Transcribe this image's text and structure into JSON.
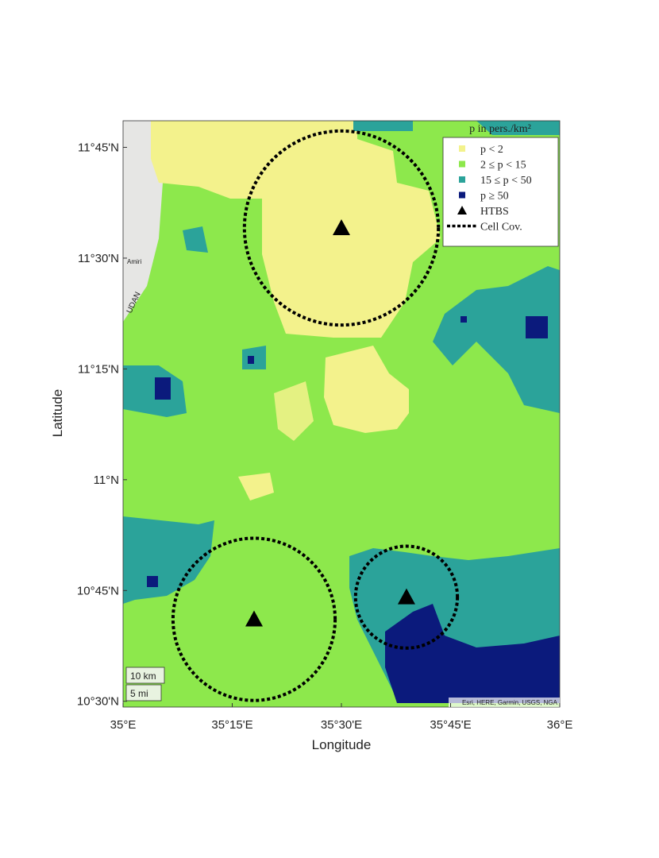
{
  "map": {
    "xlabel": "Longitude",
    "ylabel": "Latitude",
    "xlim": [
      35,
      36
    ],
    "ylim": [
      10.487,
      11.81
    ],
    "xticks": [
      {
        "value": 35,
        "label": "35°E"
      },
      {
        "value": 35.25,
        "label": "35°15'E"
      },
      {
        "value": 35.5,
        "label": "35°30'E"
      },
      {
        "value": 35.75,
        "label": "35°45'E"
      },
      {
        "value": 36,
        "label": "36°E"
      }
    ],
    "yticks": [
      {
        "value": 10.5,
        "label": "10°30'N"
      },
      {
        "value": 10.75,
        "label": "10°45'N"
      },
      {
        "value": 11,
        "label": "11°N"
      },
      {
        "value": 11.25,
        "label": "11°15'N"
      },
      {
        "value": 11.5,
        "label": "11°30'N"
      },
      {
        "value": 11.75,
        "label": "11°45'N"
      }
    ],
    "legend": {
      "title": "p in pers./km²",
      "entries": [
        {
          "label": "p < 2",
          "color": "#f3f28c"
        },
        {
          "label": "2 ≤ p < 15",
          "color": "#8de84c"
        },
        {
          "label": "15 ≤ p < 50",
          "color": "#2ba39a"
        },
        {
          "label": "p ≥ 50",
          "color": "#0b1a7c"
        },
        {
          "label": "HTBS",
          "color": "#000000"
        },
        {
          "label": "Cell Cov.",
          "color": "#000000"
        }
      ]
    },
    "stations": [
      {
        "lon": 35.5,
        "lat": 11.568,
        "radius": 0.219
      },
      {
        "lon": 35.3,
        "lat": 10.685,
        "radius": 0.183
      },
      {
        "lon": 35.649,
        "lat": 10.735,
        "radius": 0.115
      }
    ],
    "scale_bar": [
      "10 km",
      "5 mi"
    ],
    "attribution": "Esri, HERE, Garmin, USGS, NGA",
    "place_labels": [
      "Amiri",
      "UDAN"
    ]
  }
}
